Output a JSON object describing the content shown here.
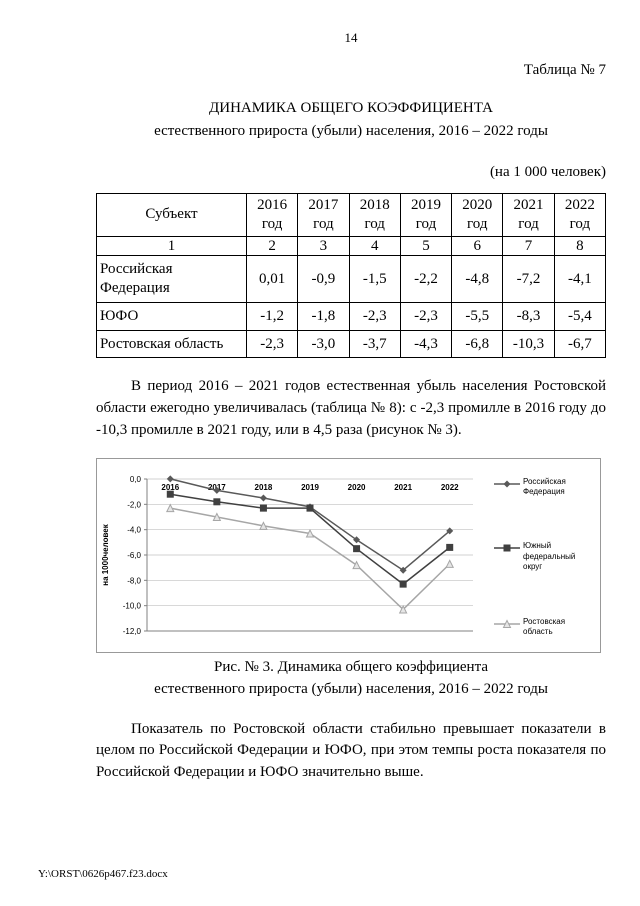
{
  "page": {
    "number": "14",
    "table_label": "Таблица № 7",
    "title_line1": "ДИНАМИКА ОБЩЕГО КОЭФФИЦИЕНТА",
    "title_line2": "естественного прироста (убыли) населения, 2016 – 2022 годы",
    "unit_note": "(на 1 000 человек)",
    "footer": "Y:\\ORST\\0626p467.f23.docx"
  },
  "table": {
    "headers": [
      "Субъект",
      "2016 год",
      "2017 год",
      "2018 год",
      "2019 год",
      "2020 год",
      "2021 год",
      "2022 год"
    ],
    "col_numbers": [
      "1",
      "2",
      "3",
      "4",
      "5",
      "6",
      "7",
      "8"
    ],
    "rows": [
      {
        "name": "Российская Федерация",
        "values": [
          "0,01",
          "-0,9",
          "-1,5",
          "-2,2",
          "-4,8",
          "-7,2",
          "-4,1"
        ]
      },
      {
        "name": "ЮФО",
        "values": [
          "-1,2",
          "-1,8",
          "-2,3",
          "-2,3",
          "-5,5",
          "-8,3",
          "-5,4"
        ]
      },
      {
        "name": "Ростовская область",
        "values": [
          "-2,3",
          "-3,0",
          "-3,7",
          "-4,3",
          "-6,8",
          "-10,3",
          "-6,7"
        ]
      }
    ]
  },
  "paragraph1": "В период 2016 – 2021 годов естественная убыль населения Ростовской области ежегодно увеличивалась (таблица № 8): с -2,3 промилле в 2016 году до -10,3 промилле в 2021 году, или в 4,5 раза (рисунок № 3).",
  "figure": {
    "caption_line1": "Рис. № 3. Динамика общего коэффициента",
    "caption_line2": "естественного прироста (убыли) населения, 2016 – 2022 годы"
  },
  "chart_data": {
    "type": "line",
    "categories": [
      "2016",
      "2017",
      "2018",
      "2019",
      "2020",
      "2021",
      "2022"
    ],
    "series": [
      {
        "name": "Российская Федерация",
        "values": [
          0.01,
          -0.9,
          -1.5,
          -2.2,
          -4.8,
          -7.2,
          -4.1
        ],
        "marker": "diamond",
        "color": "#595959"
      },
      {
        "name": "Южный федеральный округ",
        "values": [
          -1.2,
          -1.8,
          -2.3,
          -2.3,
          -5.5,
          -8.3,
          -5.4
        ],
        "marker": "square",
        "color": "#404040"
      },
      {
        "name": "Ростовская область",
        "values": [
          -2.3,
          -3.0,
          -3.7,
          -4.3,
          -6.8,
          -10.3,
          -6.7
        ],
        "marker": "triangle",
        "color": "#a6a6a6"
      }
    ],
    "ylabel": "на 1000человек",
    "xlabel": "",
    "ylim": [
      -12,
      0
    ],
    "ytick_labels": [
      "0,0",
      "-2,0",
      "-4,0",
      "-6,0",
      "-8,0",
      "-10,0",
      "-12,0"
    ],
    "grid": true,
    "legend_position": "right"
  },
  "paragraph2": "Показатель по Ростовской области стабильно превышает показатели в целом по Российской Федерации и ЮФО, при этом темпы роста показателя по Российской Федерации и ЮФО значительно выше."
}
